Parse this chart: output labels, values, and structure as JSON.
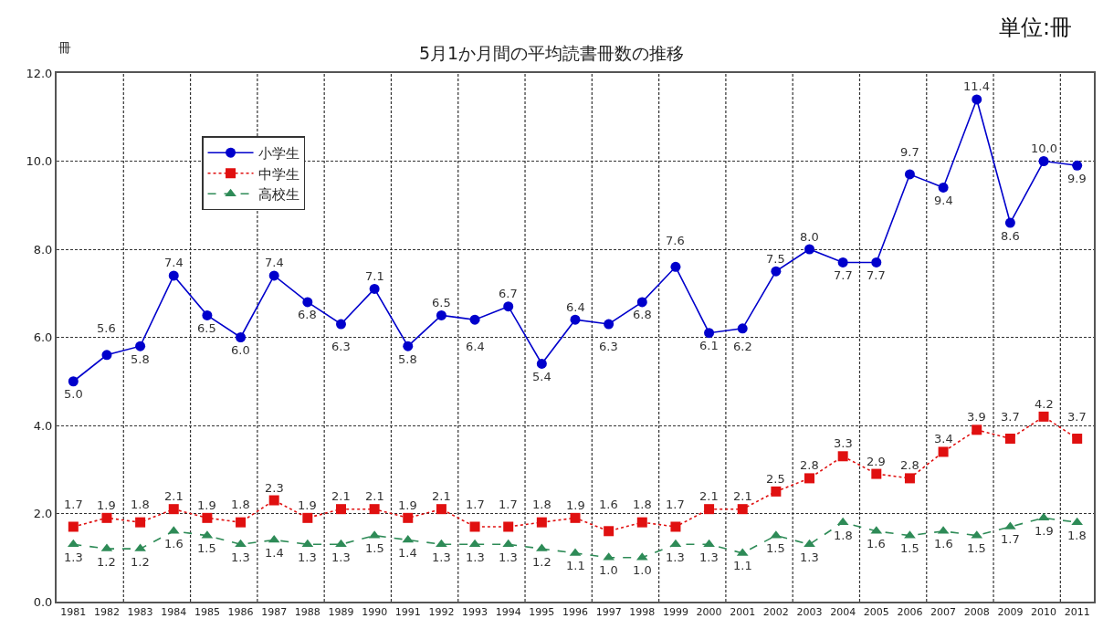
{
  "chart_data": {
    "type": "line",
    "title": "5月1か月間の平均読書冊数の推移",
    "ylabel": "冊",
    "annotations": [
      "単位:冊"
    ],
    "categories": [
      "1981",
      "1982",
      "1983",
      "1984",
      "1985",
      "1986",
      "1987",
      "1988",
      "1989",
      "1990",
      "1991",
      "1992",
      "1993",
      "1994",
      "1995",
      "1996",
      "1997",
      "1998",
      "1999",
      "2000",
      "2001",
      "2002",
      "2003",
      "2004",
      "2005",
      "2006",
      "2007",
      "2008",
      "2009",
      "2010",
      "2011"
    ],
    "series": [
      {
        "name": "小学生",
        "color": "#0000cc",
        "marker": "circle",
        "line_style": "solid",
        "values": [
          5.0,
          5.6,
          5.8,
          7.4,
          6.5,
          6.0,
          7.4,
          6.8,
          6.3,
          7.1,
          5.8,
          6.5,
          6.4,
          6.7,
          5.4,
          6.4,
          6.3,
          6.8,
          7.6,
          6.1,
          6.2,
          7.5,
          8.0,
          7.7,
          7.7,
          9.7,
          9.4,
          11.4,
          8.6,
          10.0,
          9.9
        ],
        "value_labels": [
          "5.0",
          "5.6",
          "5.8",
          "7.4",
          "6.5",
          "6.0",
          "7.4",
          "6.8",
          "6.3",
          "7.1",
          "5.8",
          "6.5",
          "6.4",
          "6.7",
          "5.4",
          "6.4",
          "6.3",
          "6.8",
          "7.6",
          "6.1",
          "6.2",
          "7.5",
          "8.0",
          "7.7",
          "7.7",
          "9.7",
          "9.4",
          "11.4",
          "8.6",
          "10.0",
          "9.9"
        ]
      },
      {
        "name": "中学生",
        "color": "#e01010",
        "marker": "square",
        "line_style": "dotted",
        "values": [
          1.7,
          1.9,
          1.8,
          2.1,
          1.9,
          1.8,
          2.3,
          1.9,
          2.1,
          2.1,
          1.9,
          2.1,
          1.7,
          1.7,
          1.8,
          1.9,
          1.6,
          1.8,
          1.7,
          2.1,
          2.1,
          2.5,
          2.8,
          3.3,
          2.9,
          2.8,
          3.4,
          3.9,
          3.7,
          4.2,
          3.7
        ],
        "value_labels": [
          "1.7",
          "1.9",
          "1.8",
          "2.1",
          "1.9",
          "1.8",
          "2.3",
          "1.9",
          "2.1",
          "2.1",
          "1.9",
          "2.1",
          "1.7",
          "1.7",
          "1.8",
          "1.9",
          "1.6",
          "1.8",
          "1.7",
          "2.1",
          "2.1",
          "2.5",
          "2.8",
          "3.3",
          "2.9",
          "2.8",
          "3.4",
          "3.9",
          "3.7",
          "4.2",
          "3.7"
        ]
      },
      {
        "name": "高校生",
        "color": "#2e8b57",
        "marker": "triangle",
        "line_style": "dashed",
        "values": [
          1.3,
          1.2,
          1.2,
          1.6,
          1.5,
          1.3,
          1.4,
          1.3,
          1.3,
          1.5,
          1.4,
          1.3,
          1.3,
          1.3,
          1.2,
          1.1,
          1.0,
          1.0,
          1.3,
          1.3,
          1.1,
          1.5,
          1.3,
          1.8,
          1.6,
          1.5,
          1.6,
          1.5,
          1.7,
          1.9,
          1.8
        ],
        "value_labels": [
          "1.3",
          "1.2",
          "1.2",
          "1.6",
          "1.5",
          "1.3",
          "1.4",
          "1.3",
          "1.3",
          "1.5",
          "1.4",
          "1.3",
          "1.3",
          "1.3",
          "1.2",
          "1.1",
          "1.0",
          "1.0",
          "1.3",
          "1.3",
          "1.1",
          "1.5",
          "1.3",
          "1.8",
          "1.6",
          "1.5",
          "1.6",
          "1.5",
          "1.7",
          "1.9",
          "1.8"
        ]
      }
    ],
    "ylim": [
      0,
      12
    ],
    "yticks": [
      {
        "value": 0,
        "label": "0.0"
      },
      {
        "value": 2,
        "label": "2.0"
      },
      {
        "value": 4,
        "label": "4.0"
      },
      {
        "value": 6,
        "label": "6.0"
      },
      {
        "value": 8,
        "label": "8.0"
      },
      {
        "value": 10,
        "label": "10.0"
      },
      {
        "value": 12,
        "label": "12.0"
      }
    ],
    "grid": true,
    "legend": "top left"
  }
}
